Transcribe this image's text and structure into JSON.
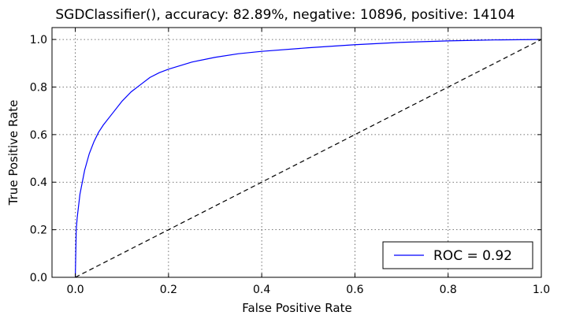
{
  "chart_data": {
    "type": "line",
    "title": "SGDClassifier(), accuracy: 82.89%, negative: 10896, positive: 14104",
    "xlabel": "False Positive Rate",
    "ylabel": "True Positive Rate",
    "xlim": [
      -0.05,
      1.0
    ],
    "ylim": [
      0.0,
      1.05
    ],
    "grid": true,
    "legend_position": "lower-right",
    "xticks": [
      "0.0",
      "0.2",
      "0.4",
      "0.6",
      "0.8",
      "1.0"
    ],
    "yticks": [
      "0.0",
      "0.2",
      "0.4",
      "0.6",
      "0.8",
      "1.0"
    ],
    "series": [
      {
        "name": "ROC = 0.92",
        "color": "#0000ff",
        "style": "solid",
        "x": [
          0.0,
          0.002,
          0.004,
          0.007,
          0.01,
          0.015,
          0.02,
          0.03,
          0.04,
          0.05,
          0.06,
          0.08,
          0.1,
          0.12,
          0.14,
          0.16,
          0.18,
          0.2,
          0.25,
          0.3,
          0.35,
          0.4,
          0.5,
          0.6,
          0.7,
          0.8,
          0.9,
          1.0
        ],
        "y": [
          0.0,
          0.2,
          0.25,
          0.3,
          0.35,
          0.4,
          0.45,
          0.52,
          0.57,
          0.61,
          0.64,
          0.69,
          0.74,
          0.78,
          0.81,
          0.84,
          0.86,
          0.875,
          0.905,
          0.925,
          0.94,
          0.95,
          0.965,
          0.978,
          0.988,
          0.994,
          0.998,
          1.0
        ]
      },
      {
        "name": "",
        "color": "#000000",
        "style": "dashed",
        "x": [
          0.0,
          1.0
        ],
        "y": [
          0.0,
          1.0
        ]
      }
    ],
    "legend": [
      {
        "label": "ROC = 0.92",
        "color": "#0000ff"
      }
    ]
  }
}
